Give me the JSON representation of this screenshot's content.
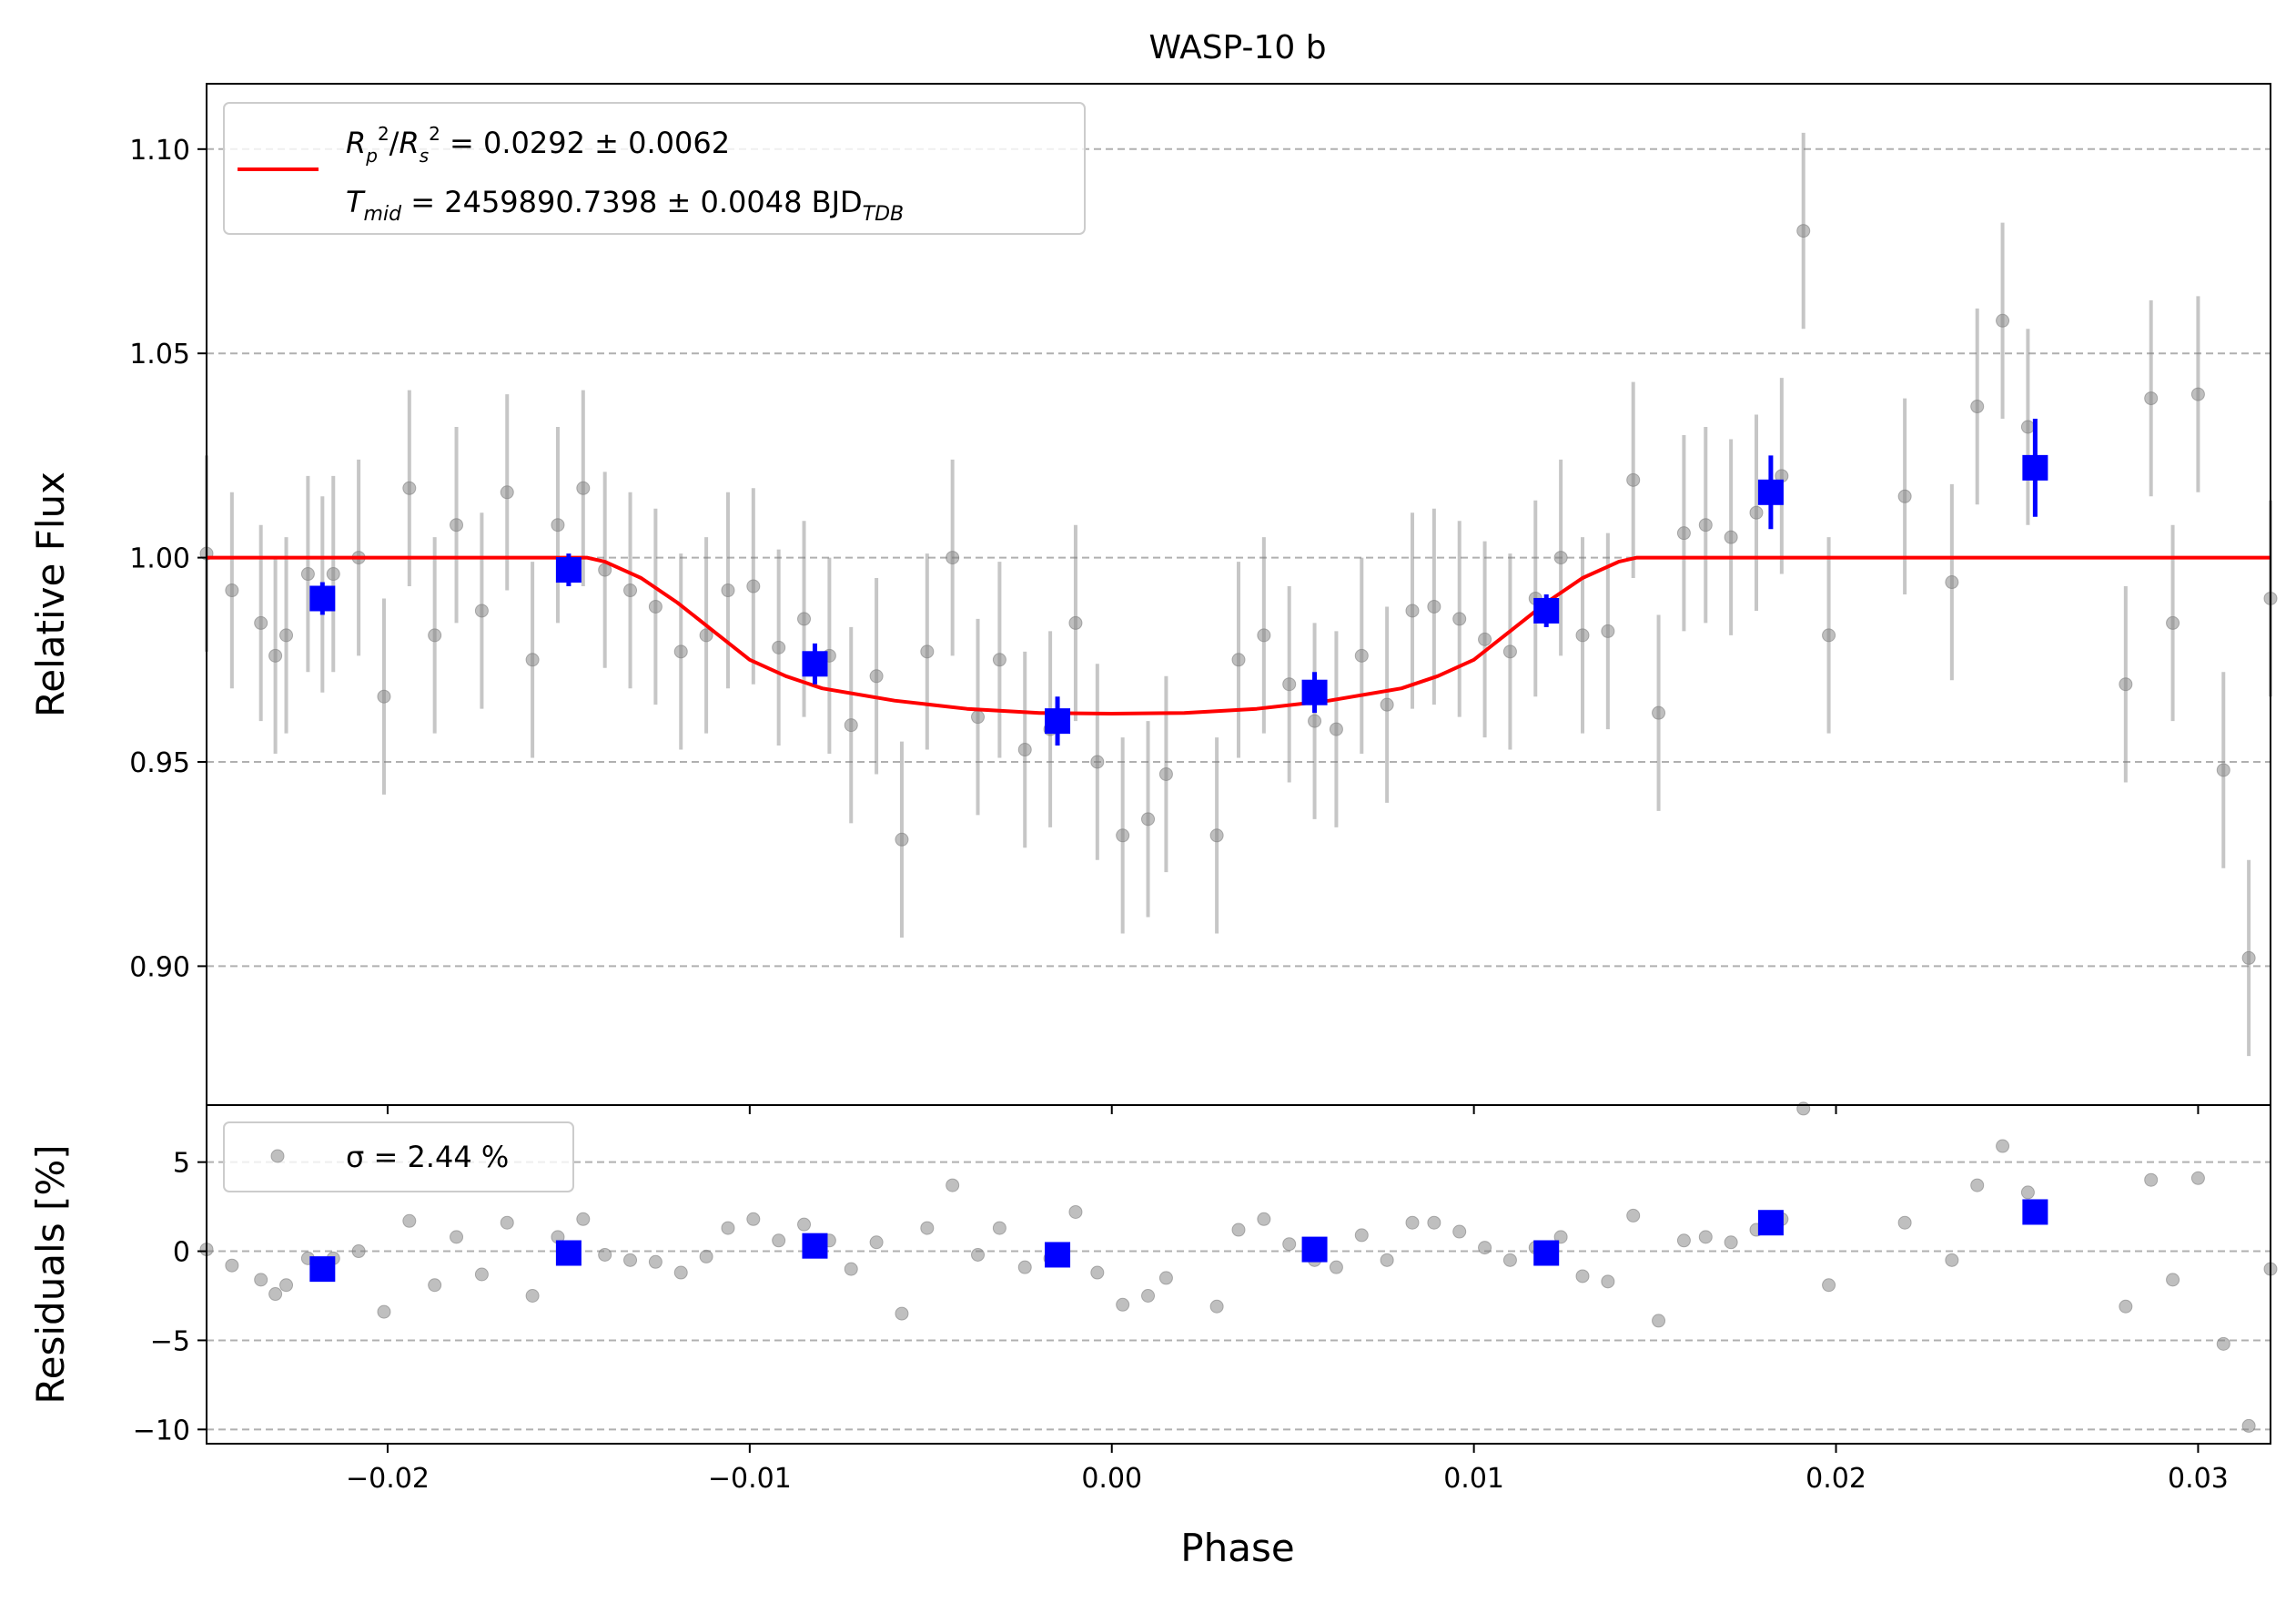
{
  "chart_data": [
    {
      "type": "scatter",
      "title": "WASP-10 b",
      "xlabel": "Phase",
      "ylabel": "Relative Flux",
      "xlim": [
        -0.025,
        0.032
      ],
      "ylim": [
        0.866,
        1.116
      ],
      "grid": "horizontal dashed",
      "x_ticks": [
        -0.02,
        -0.01,
        0.0,
        0.01,
        0.02,
        0.03
      ],
      "x_tick_labels": [
        "−0.02",
        "−0.01",
        "0.00",
        "0.01",
        "0.02",
        "0.03"
      ],
      "y_ticks": [
        0.9,
        0.95,
        1.0,
        1.05,
        1.1
      ],
      "y_tick_labels": [
        "0.90",
        "0.95",
        "1.00",
        "1.05",
        "1.10"
      ],
      "legend": {
        "placement": "top-left",
        "line1": "R²p/R²s = 0.0292 ± 0.0062",
        "line2": "Tmid = 2459890.7398 ± 0.0048 BJD_TDB"
      },
      "series": [
        {
          "kind": "data",
          "color": "#808080",
          "error": 0.024,
          "points": [
            [
              -0.025,
              1.001
            ],
            [
              -0.0243,
              0.992
            ],
            [
              -0.0235,
              0.984
            ],
            [
              -0.0231,
              0.976
            ],
            [
              -0.0228,
              0.981
            ],
            [
              -0.0222,
              0.996
            ],
            [
              -0.0218,
              0.991
            ],
            [
              -0.0215,
              0.996
            ],
            [
              -0.0208,
              1.0
            ],
            [
              -0.0201,
              0.966
            ],
            [
              -0.0194,
              1.017
            ],
            [
              -0.0187,
              0.981
            ],
            [
              -0.0181,
              1.008
            ],
            [
              -0.0174,
              0.987
            ],
            [
              -0.0167,
              1.016
            ],
            [
              -0.016,
              0.975
            ],
            [
              -0.0153,
              1.008
            ],
            [
              -0.0146,
              1.017
            ],
            [
              -0.014,
              0.997
            ],
            [
              -0.0133,
              0.992
            ],
            [
              -0.0126,
              0.988
            ],
            [
              -0.0119,
              0.977
            ],
            [
              -0.0112,
              0.981
            ],
            [
              -0.0106,
              0.992
            ],
            [
              -0.0099,
              0.993
            ],
            [
              -0.0092,
              0.978
            ],
            [
              -0.0085,
              0.985
            ],
            [
              -0.0078,
              0.976
            ],
            [
              -0.0072,
              0.959
            ],
            [
              -0.0065,
              0.971
            ],
            [
              -0.0058,
              0.931
            ],
            [
              -0.0051,
              0.977
            ],
            [
              -0.0044,
              1.0
            ],
            [
              -0.0037,
              0.961
            ],
            [
              -0.0031,
              0.975
            ],
            [
              -0.0024,
              0.953
            ],
            [
              -0.0017,
              0.958
            ],
            [
              -0.001,
              0.984
            ],
            [
              -0.0004,
              0.95
            ],
            [
              0.0003,
              0.932
            ],
            [
              0.001,
              0.936
            ],
            [
              0.0015,
              0.947
            ],
            [
              0.0029,
              0.932
            ],
            [
              0.0035,
              0.975
            ],
            [
              0.0042,
              0.981
            ],
            [
              0.0049,
              0.969
            ],
            [
              0.0056,
              0.96
            ],
            [
              0.0062,
              0.958
            ],
            [
              0.0069,
              0.976
            ],
            [
              0.0076,
              0.964
            ],
            [
              0.0083,
              0.987
            ],
            [
              0.0089,
              0.988
            ],
            [
              0.0096,
              0.985
            ],
            [
              0.0103,
              0.98
            ],
            [
              0.011,
              0.977
            ],
            [
              0.0117,
              0.99
            ],
            [
              0.0124,
              1.0
            ],
            [
              0.013,
              0.981
            ],
            [
              0.0137,
              0.982
            ],
            [
              0.0144,
              1.019
            ],
            [
              0.0151,
              0.962
            ],
            [
              0.0158,
              1.006
            ],
            [
              0.0164,
              1.008
            ],
            [
              0.0171,
              1.005
            ],
            [
              0.0178,
              1.011
            ],
            [
              0.0185,
              1.02
            ],
            [
              0.0191,
              1.08
            ],
            [
              0.0198,
              0.981
            ],
            [
              0.0219,
              1.015
            ],
            [
              0.0232,
              0.994
            ],
            [
              0.0239,
              1.037
            ],
            [
              0.0246,
              1.058
            ],
            [
              0.0253,
              1.032
            ],
            [
              0.028,
              0.969
            ],
            [
              0.0287,
              1.039
            ],
            [
              0.0293,
              0.984
            ],
            [
              0.03,
              1.04
            ],
            [
              0.0307,
              0.948
            ],
            [
              0.0314,
              0.902
            ],
            [
              0.032,
              0.99
            ]
          ]
        },
        {
          "kind": "binned",
          "color": "#0000ff",
          "points": [
            [
              -0.0218,
              0.99,
              0.004
            ],
            [
              -0.015,
              0.997,
              0.004
            ],
            [
              -0.0082,
              0.974,
              0.005
            ],
            [
              -0.0015,
              0.96,
              0.006
            ],
            [
              0.0056,
              0.967,
              0.005
            ],
            [
              0.012,
              0.987,
              0.004
            ],
            [
              0.0182,
              1.016,
              0.009
            ],
            [
              0.0255,
              1.022,
              0.012
            ]
          ]
        },
        {
          "kind": "model",
          "color": "#ff0000",
          "x": [
            -0.025,
            -0.0145,
            -0.014,
            -0.013,
            -0.012,
            -0.011,
            -0.01,
            -0.009,
            -0.008,
            -0.006,
            -0.004,
            -0.002,
            0.0,
            0.002,
            0.004,
            0.006,
            0.008,
            0.009,
            0.01,
            0.011,
            0.012,
            0.013,
            0.014,
            0.0145,
            0.032
          ],
          "y": [
            1.0,
            1.0,
            0.999,
            0.995,
            0.989,
            0.982,
            0.975,
            0.971,
            0.968,
            0.965,
            0.963,
            0.962,
            0.9618,
            0.962,
            0.963,
            0.965,
            0.968,
            0.971,
            0.975,
            0.982,
            0.989,
            0.995,
            0.999,
            1.0,
            1.0
          ]
        }
      ]
    },
    {
      "type": "scatter",
      "xlabel": "Phase",
      "ylabel": "Residuals [%]",
      "xlim": [
        -0.025,
        0.032
      ],
      "ylim": [
        -10.8,
        8.2
      ],
      "grid": "horizontal dashed",
      "y_ticks": [
        5,
        0,
        -5,
        -10
      ],
      "y_tick_labels": [
        "5",
        "0",
        "−5",
        "−10"
      ],
      "legend": {
        "placement": "top-left",
        "label": "σ = 2.44 %"
      },
      "series": [
        {
          "kind": "residuals",
          "color": "#808080",
          "points": [
            [
              -0.025,
              0.1
            ],
            [
              -0.0243,
              -0.8
            ],
            [
              -0.0235,
              -1.6
            ],
            [
              -0.0231,
              -2.4
            ],
            [
              -0.0228,
              -1.9
            ],
            [
              -0.0222,
              -0.4
            ],
            [
              -0.0218,
              -0.9
            ],
            [
              -0.0215,
              -0.4
            ],
            [
              -0.0208,
              0.0
            ],
            [
              -0.0201,
              -3.4
            ],
            [
              -0.0194,
              1.7
            ],
            [
              -0.0187,
              -1.9
            ],
            [
              -0.0181,
              0.8
            ],
            [
              -0.0174,
              -1.3
            ],
            [
              -0.0167,
              1.6
            ],
            [
              -0.016,
              -2.5
            ],
            [
              -0.0153,
              0.8
            ],
            [
              -0.0146,
              1.8
            ],
            [
              -0.014,
              -0.2
            ],
            [
              -0.0133,
              -0.5
            ],
            [
              -0.0126,
              -0.6
            ],
            [
              -0.0119,
              -1.2
            ],
            [
              -0.0112,
              -0.3
            ],
            [
              -0.0106,
              1.3
            ],
            [
              -0.0099,
              1.8
            ],
            [
              -0.0092,
              0.6
            ],
            [
              -0.0085,
              1.5
            ],
            [
              -0.0078,
              0.6
            ],
            [
              -0.0072,
              -1.0
            ],
            [
              -0.0065,
              0.5
            ],
            [
              -0.0058,
              -3.5
            ],
            [
              -0.0051,
              1.3
            ],
            [
              -0.0044,
              3.7
            ],
            [
              -0.0037,
              -0.2
            ],
            [
              -0.0031,
              1.3
            ],
            [
              -0.0024,
              -0.9
            ],
            [
              -0.0017,
              -0.4
            ],
            [
              -0.001,
              2.2
            ],
            [
              -0.0004,
              -1.2
            ],
            [
              0.0003,
              -3.0
            ],
            [
              0.001,
              -2.5
            ],
            [
              0.0015,
              -1.5
            ],
            [
              0.0029,
              -3.1
            ],
            [
              0.0035,
              1.2
            ],
            [
              0.0042,
              1.8
            ],
            [
              0.0049,
              0.4
            ],
            [
              0.0056,
              -0.5
            ],
            [
              0.0062,
              -0.9
            ],
            [
              0.0069,
              0.9
            ],
            [
              0.0076,
              -0.5
            ],
            [
              0.0083,
              1.6
            ],
            [
              0.0089,
              1.6
            ],
            [
              0.0096,
              1.1
            ],
            [
              0.0103,
              0.2
            ],
            [
              0.011,
              -0.5
            ],
            [
              0.0117,
              0.2
            ],
            [
              0.0124,
              0.8
            ],
            [
              0.013,
              -1.4
            ],
            [
              0.0137,
              -1.7
            ],
            [
              0.0144,
              2.0
            ],
            [
              0.0151,
              -3.9
            ],
            [
              0.0158,
              0.6
            ],
            [
              0.0164,
              0.8
            ],
            [
              0.0171,
              0.5
            ],
            [
              0.0178,
              1.2
            ],
            [
              0.0185,
              1.8
            ],
            [
              0.0191,
              8.0
            ],
            [
              0.0198,
              -1.9
            ],
            [
              0.0219,
              1.6
            ],
            [
              0.0232,
              -0.5
            ],
            [
              0.0239,
              3.7
            ],
            [
              0.0246,
              5.9
            ],
            [
              0.0253,
              3.3
            ],
            [
              0.028,
              -3.1
            ],
            [
              0.0287,
              4.0
            ],
            [
              0.0293,
              -1.6
            ],
            [
              0.03,
              4.1
            ],
            [
              0.0307,
              -5.2
            ],
            [
              0.0314,
              -9.8
            ],
            [
              0.032,
              -1.0
            ]
          ]
        },
        {
          "kind": "binned",
          "color": "#0000ff",
          "points": [
            [
              -0.0218,
              -1.0
            ],
            [
              -0.015,
              -0.1
            ],
            [
              -0.0082,
              0.3
            ],
            [
              -0.0015,
              -0.2
            ],
            [
              0.0056,
              0.1
            ],
            [
              0.012,
              -0.1
            ],
            [
              0.0182,
              1.6
            ],
            [
              0.0255,
              2.2
            ]
          ]
        }
      ]
    }
  ]
}
